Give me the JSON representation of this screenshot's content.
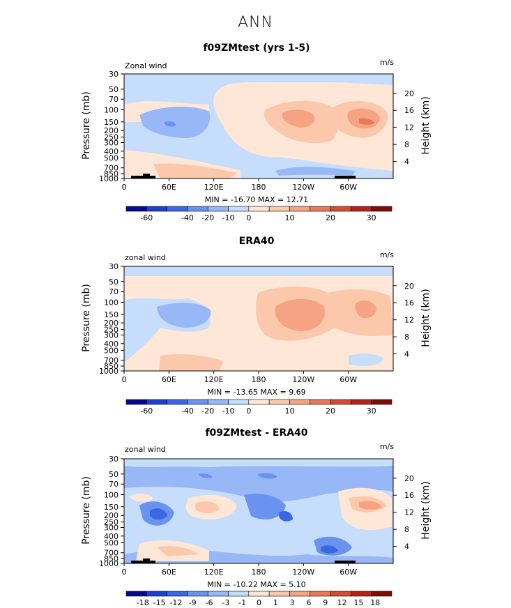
{
  "page_title": "ANN",
  "colors": {
    "levels_std": [
      "#08088c",
      "#1e3fd0",
      "#3a68e3",
      "#6993ef",
      "#98b7f7",
      "#c6ddfb",
      "#ffe7d8",
      "#fcc8ac",
      "#f6a383",
      "#e8795b",
      "#d74a33",
      "#b5221c",
      "#7d0c0b"
    ],
    "levels_diff": [
      "#08088c",
      "#1e3fd0",
      "#3a68e3",
      "#6993ef",
      "#98b7f7",
      "#c6ddfb",
      "#ffe7d8",
      "#fcc8ac",
      "#f6a383",
      "#e8795b",
      "#d74a33",
      "#b5221c",
      "#7d0c0b"
    ]
  },
  "chart_data": [
    {
      "type": "heatmap",
      "title": "f09ZMtest (yrs 1-5)",
      "left_label": "Zonal wind",
      "units": "m/s",
      "ylabel": "Pressure (mb)",
      "ylabel_right": "Height (km)",
      "xticks": [
        "0",
        "60E",
        "120E",
        "180",
        "120W",
        "60W"
      ],
      "yticks": [
        "30",
        "50",
        "70",
        "100",
        "150",
        "200",
        "250",
        "300",
        "400",
        "500",
        "700",
        "850",
        "1000"
      ],
      "yticks_right": [
        "20",
        "16",
        "12",
        "8",
        "4"
      ],
      "stats": "MIN = -16.70   MAX =  12.71",
      "colorbar_labels": [
        "-60",
        "-40",
        "-20",
        "-10",
        "0",
        "10",
        "20",
        "30"
      ],
      "min": -16.7,
      "max": 12.71
    },
    {
      "type": "heatmap",
      "title": "ERA40",
      "left_label": "zonal wind",
      "units": "m/s",
      "ylabel": "Pressure (mb)",
      "ylabel_right": "Height (km)",
      "xticks": [
        "0",
        "60E",
        "120E",
        "180",
        "120W",
        "60W"
      ],
      "yticks": [
        "30",
        "50",
        "70",
        "100",
        "150",
        "200",
        "250",
        "300",
        "400",
        "500",
        "700",
        "850",
        "1000"
      ],
      "yticks_right": [
        "20",
        "16",
        "12",
        "8",
        "4"
      ],
      "stats": "MIN = -13.65   MAX =   9.69",
      "colorbar_labels": [
        "-60",
        "-40",
        "-20",
        "-10",
        "0",
        "10",
        "20",
        "30"
      ],
      "min": -13.65,
      "max": 9.69
    },
    {
      "type": "heatmap",
      "title": "f09ZMtest - ERA40",
      "left_label": "zonal wind",
      "units": "m/s",
      "ylabel": "Pressure (mb)",
      "ylabel_right": "Height (km)",
      "xticks": [
        "0",
        "60E",
        "120E",
        "180",
        "120W",
        "60W"
      ],
      "yticks": [
        "30",
        "50",
        "70",
        "100",
        "150",
        "200",
        "250",
        "300",
        "400",
        "500",
        "700",
        "850",
        "1000"
      ],
      "yticks_right": [
        "20",
        "16",
        "12",
        "8",
        "4"
      ],
      "stats": "MIN = -10.22   MAX =   5.10",
      "colorbar_labels": [
        "-18",
        "-15",
        "-12",
        "-9",
        "-6",
        "-3",
        "-1",
        "0",
        "1",
        "3",
        "6",
        "9",
        "12",
        "15",
        "18"
      ],
      "min": -10.22,
      "max": 5.1
    }
  ]
}
